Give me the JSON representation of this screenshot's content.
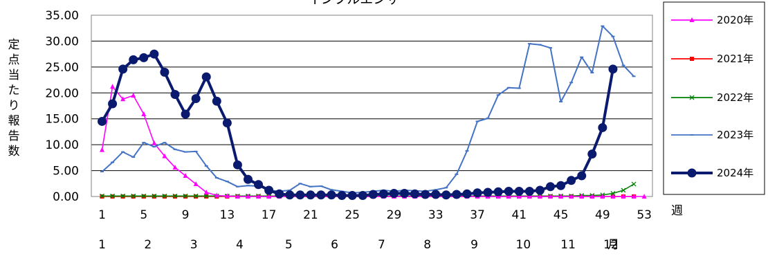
{
  "chart_data": {
    "type": "line",
    "title": "インフルエンザ",
    "ylabel": "定点当たり報告数",
    "xlabel": "週",
    "month_label": "月",
    "ylim": [
      0,
      35
    ],
    "y_ticks": [
      "0.00",
      "5.00",
      "10.00",
      "15.00",
      "20.00",
      "25.00",
      "30.00",
      "35.00"
    ],
    "x_ticks": [
      "1",
      "5",
      "9",
      "13",
      "17",
      "21",
      "25",
      "29",
      "33",
      "37",
      "41",
      "45",
      "49",
      "53"
    ],
    "months": [
      "1",
      "2",
      "3",
      "4",
      "5",
      "6",
      "7",
      "8",
      "9",
      "10",
      "11",
      "12"
    ],
    "grid": "horizontal",
    "legend_position": "right",
    "series": [
      {
        "name": "2020年",
        "color": "#FF00FF",
        "marker": "triangle",
        "x": [
          1,
          2,
          3,
          4,
          5,
          6,
          7,
          8,
          9,
          10,
          11,
          12,
          13,
          14,
          15,
          16,
          17,
          18,
          19,
          20,
          21,
          22,
          23,
          24,
          25,
          26,
          27,
          28,
          29,
          30,
          31,
          32,
          33,
          34,
          35,
          36,
          37,
          38,
          39,
          40,
          41,
          42,
          43,
          44,
          45,
          46,
          47,
          48,
          49,
          50,
          51,
          52,
          53
        ],
        "values": [
          9.0,
          21.2,
          18.8,
          19.5,
          15.9,
          10.3,
          7.8,
          5.6,
          4.0,
          2.4,
          0.8,
          0.2,
          0.1,
          0,
          0,
          0,
          0,
          0,
          0,
          0,
          0,
          0,
          0,
          0,
          0,
          0,
          0,
          0,
          0,
          0,
          0,
          0,
          0,
          0,
          0,
          0,
          0,
          0,
          0,
          0,
          0,
          0,
          0,
          0,
          0,
          0,
          0,
          0,
          0,
          0,
          0,
          0,
          0
        ]
      },
      {
        "name": "2021年",
        "color": "#FF0000",
        "marker": "square",
        "x": [
          1,
          2,
          3,
          4,
          5,
          6,
          7,
          8,
          9,
          10,
          11,
          12,
          13,
          14,
          15,
          16,
          17,
          18,
          19,
          20,
          21,
          22,
          23,
          24,
          25,
          26,
          27,
          28,
          29,
          30,
          31,
          32,
          33,
          34,
          35,
          36,
          37,
          38,
          39,
          40,
          41,
          42,
          43,
          44,
          45,
          46,
          47,
          48,
          49,
          50,
          51,
          52
        ],
        "values": [
          0,
          0,
          0,
          0,
          0,
          0,
          0,
          0,
          0,
          0,
          0,
          0,
          0,
          0,
          0,
          0,
          0,
          0,
          0,
          0,
          0,
          0,
          0,
          0,
          0,
          0,
          0,
          0,
          0,
          0,
          0,
          0,
          0,
          0,
          0,
          0,
          0,
          0,
          0,
          0,
          0,
          0,
          0,
          0,
          0,
          0,
          0,
          0,
          0,
          0,
          0,
          0
        ]
      },
      {
        "name": "2022年",
        "color": "#008000",
        "marker": "x",
        "x": [
          1,
          2,
          3,
          4,
          5,
          6,
          7,
          8,
          9,
          10,
          11,
          12,
          13,
          14,
          15,
          16,
          17,
          18,
          19,
          20,
          21,
          22,
          23,
          24,
          25,
          26,
          27,
          28,
          29,
          30,
          31,
          32,
          33,
          34,
          35,
          36,
          37,
          38,
          39,
          40,
          41,
          42,
          43,
          44,
          45,
          46,
          47,
          48,
          49,
          50,
          51,
          52
        ],
        "values": [
          0.1,
          0.1,
          0.1,
          0.1,
          0.1,
          0.1,
          0.1,
          0.1,
          0.1,
          0.1,
          0.1,
          0.1,
          0.1,
          0.1,
          0.1,
          0.1,
          0.1,
          0.1,
          0.1,
          0.1,
          0.1,
          0.1,
          0.1,
          0.1,
          0.1,
          0.1,
          0.1,
          0.1,
          0.1,
          0.1,
          0.1,
          0.1,
          0.1,
          0.1,
          0.1,
          0.1,
          0.1,
          0.1,
          0.1,
          0.1,
          0.1,
          0.1,
          0.1,
          0.1,
          0.1,
          0.1,
          0.2,
          0.2,
          0.3,
          0.6,
          1.2,
          2.4
        ]
      },
      {
        "name": "2023年",
        "color": "#4472C4",
        "marker": "dash",
        "x": [
          1,
          2,
          3,
          4,
          5,
          6,
          7,
          8,
          9,
          10,
          11,
          12,
          13,
          14,
          15,
          16,
          17,
          18,
          19,
          20,
          21,
          22,
          23,
          24,
          25,
          26,
          27,
          28,
          29,
          30,
          31,
          32,
          33,
          34,
          35,
          36,
          37,
          38,
          39,
          40,
          41,
          42,
          43,
          44,
          45,
          46,
          47,
          48,
          49,
          50,
          51,
          52
        ],
        "values": [
          4.8,
          6.6,
          8.6,
          7.6,
          10.4,
          9.6,
          10.4,
          9.1,
          8.6,
          8.7,
          5.9,
          3.6,
          2.9,
          1.9,
          2.1,
          2.0,
          1.2,
          1.0,
          1.2,
          2.5,
          1.9,
          2.0,
          1.3,
          1.0,
          0.7,
          0.8,
          1.0,
          1.2,
          1.0,
          1.2,
          1.1,
          1.0,
          1.3,
          1.7,
          4.3,
          8.8,
          14.5,
          15.1,
          19.6,
          21.0,
          20.9,
          29.5,
          29.3,
          28.7,
          18.3,
          22.0,
          26.9,
          23.9,
          32.9,
          30.9,
          25.3,
          23.2
        ]
      },
      {
        "name": "2024年",
        "color": "#0A1A6E",
        "marker": "circle",
        "x": [
          1,
          2,
          3,
          4,
          5,
          6,
          7,
          8,
          9,
          10,
          11,
          12,
          13,
          14,
          15,
          16,
          17,
          18,
          19,
          20,
          21,
          22,
          23,
          24,
          25,
          26,
          27,
          28,
          29,
          30,
          31,
          32,
          33,
          34,
          35,
          36,
          37,
          38,
          39,
          40,
          41,
          42,
          43,
          44,
          45,
          46,
          47,
          48,
          49,
          50
        ],
        "values": [
          14.5,
          17.9,
          24.6,
          26.4,
          26.8,
          27.5,
          24.0,
          19.7,
          15.9,
          18.9,
          23.1,
          18.4,
          14.2,
          6.1,
          3.3,
          2.3,
          1.2,
          0.5,
          0.3,
          0.3,
          0.3,
          0.3,
          0.3,
          0.2,
          0.2,
          0.2,
          0.4,
          0.5,
          0.6,
          0.6,
          0.5,
          0.4,
          0.4,
          0.3,
          0.4,
          0.5,
          0.7,
          0.8,
          0.9,
          1.0,
          1.0,
          1.0,
          1.2,
          1.9,
          2.1,
          3.1,
          4.0,
          8.2,
          13.3,
          24.6
        ]
      }
    ]
  }
}
